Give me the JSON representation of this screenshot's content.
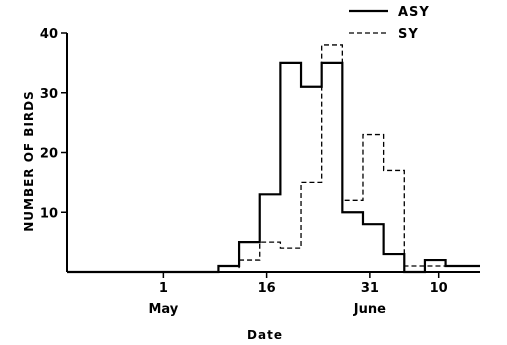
{
  "chart_data": {
    "type": "line",
    "xlabel": "Date",
    "ylabel": "NUMBER OF BIRDS",
    "x_ticks": [
      "1",
      "16",
      "31",
      "10"
    ],
    "x_tick_days": [
      1,
      16,
      31,
      41
    ],
    "month_labels": [
      "May",
      "June"
    ],
    "xlim": [
      -13,
      47
    ],
    "ylim": [
      0,
      40
    ],
    "y_ticks": [
      10,
      20,
      30,
      40
    ],
    "grid": false,
    "legend_position": "top-right",
    "series": [
      {
        "name": "ASY",
        "style": "solid",
        "x": [
          -13,
          9,
          12,
          15,
          18,
          21,
          24,
          27,
          30,
          33,
          36,
          39,
          42,
          47
        ],
        "y": [
          0,
          1,
          5,
          13,
          35,
          31,
          35,
          10,
          8,
          3,
          0,
          2,
          1,
          0
        ]
      },
      {
        "name": "SY",
        "style": "dashed",
        "x": [
          -13,
          9,
          12,
          15,
          18,
          21,
          24,
          27,
          30,
          33,
          36,
          39,
          42,
          47
        ],
        "y": [
          0,
          0,
          2,
          5,
          4,
          15,
          38,
          12,
          23,
          17,
          1,
          1,
          1,
          0
        ]
      }
    ]
  }
}
